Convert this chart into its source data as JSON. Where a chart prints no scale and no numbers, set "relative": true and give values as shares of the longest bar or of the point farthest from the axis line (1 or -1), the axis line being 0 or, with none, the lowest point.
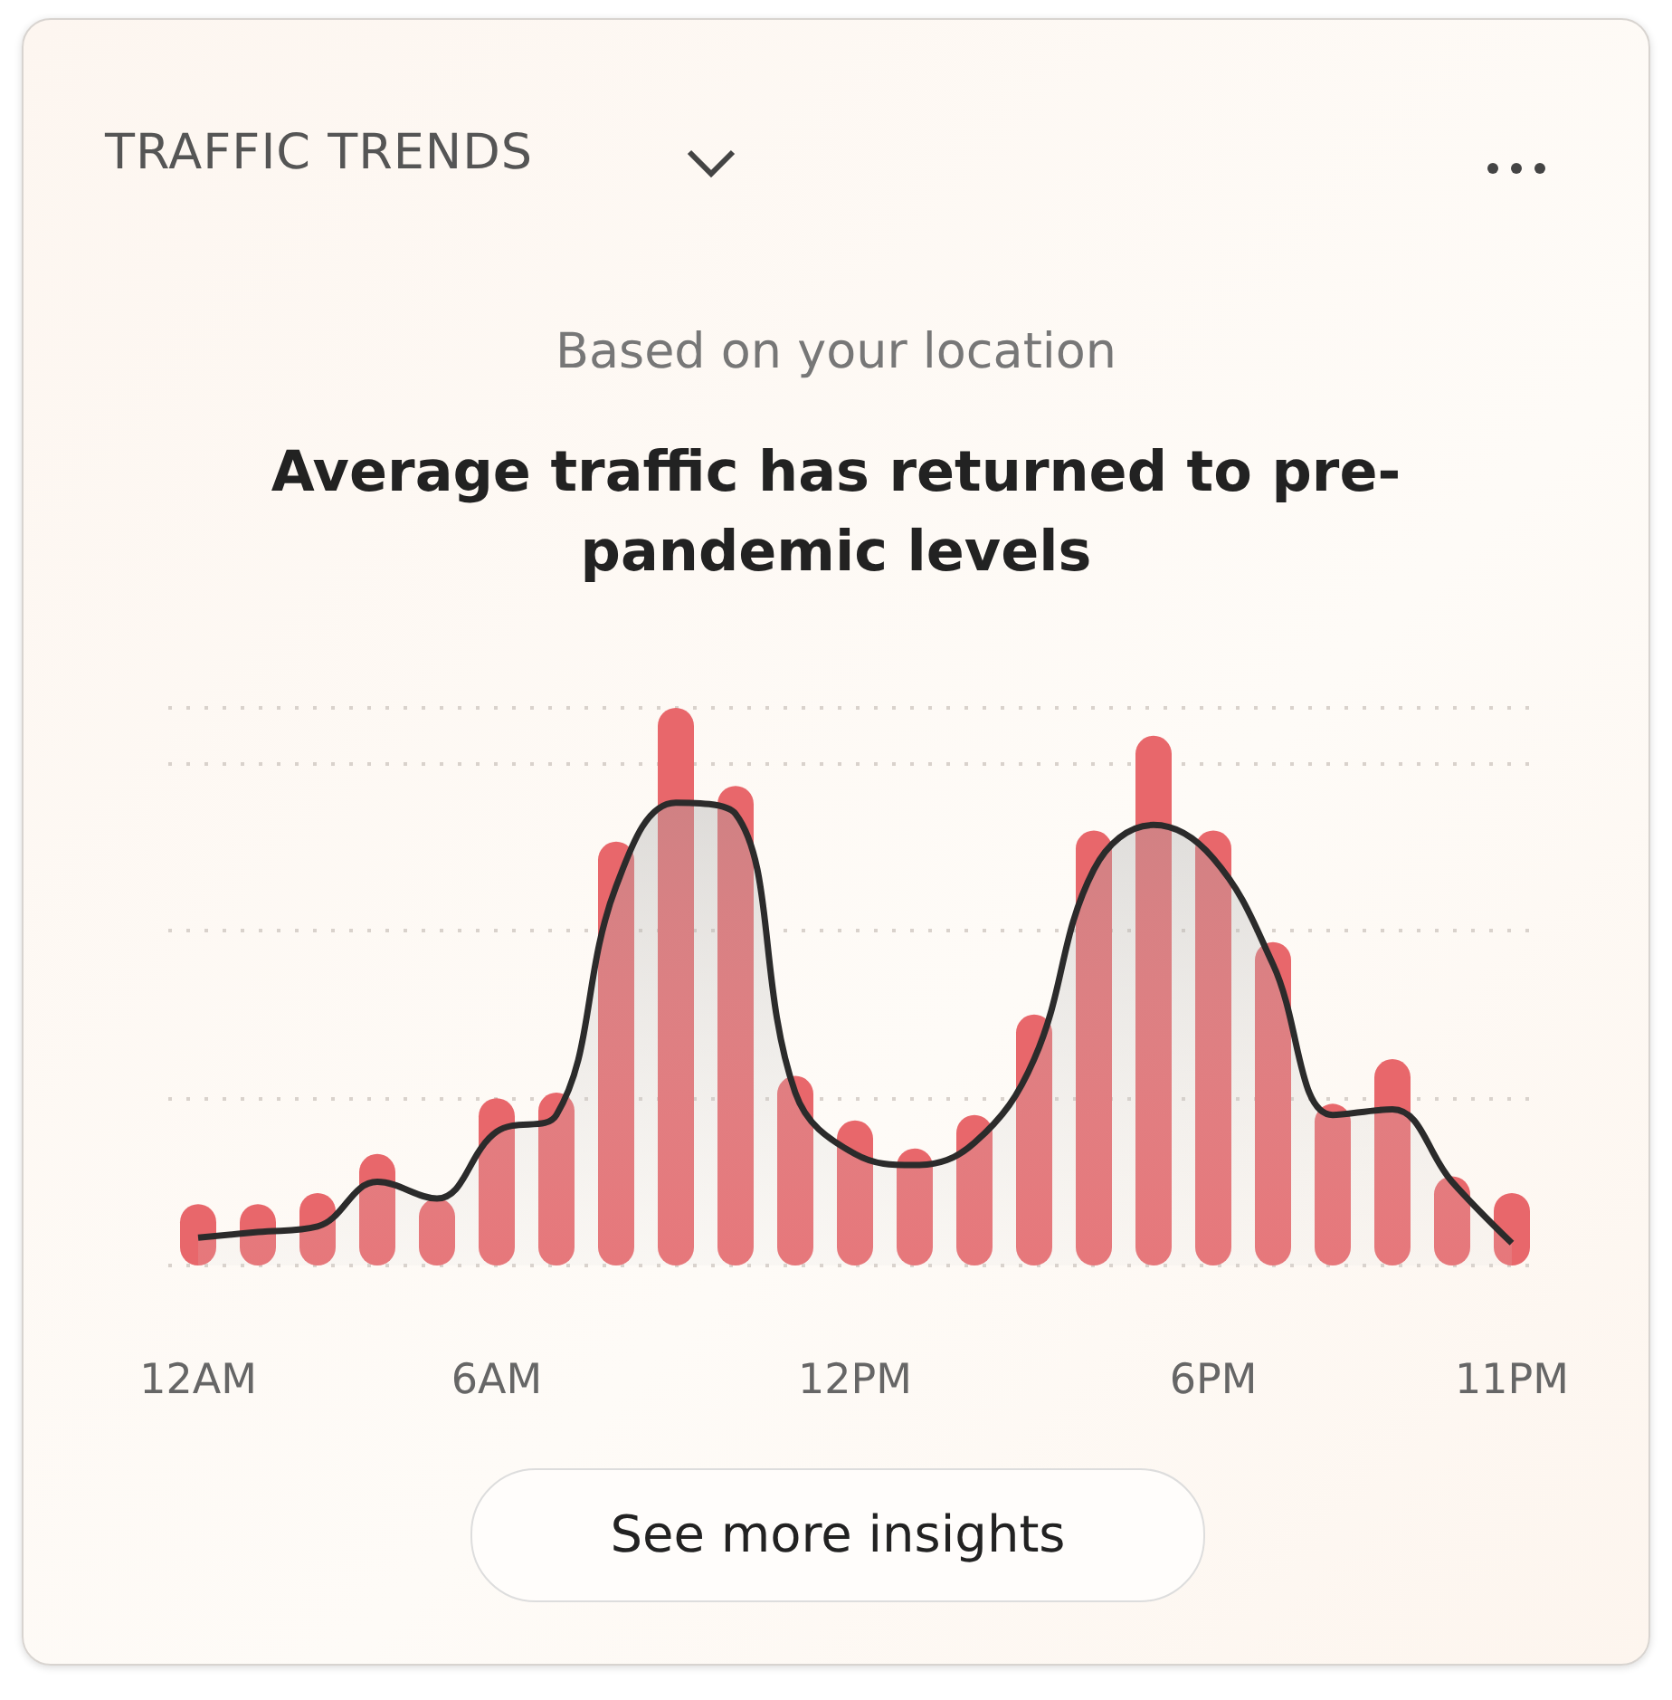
{
  "chart_data": {
    "type": "bar",
    "title": "TRAFFIC TRENDS",
    "subtitle": "Based on your location",
    "annotations": [
      "Average traffic has returned to pre-pandemic levels",
      "See more insights"
    ],
    "categories": [
      "12AM",
      null,
      null,
      null,
      null,
      "6AM",
      null,
      null,
      null,
      null,
      null,
      "12PM",
      null,
      null,
      null,
      null,
      null,
      "6PM",
      null,
      null,
      null,
      null,
      "11PM"
    ],
    "relative": true,
    "grid": "y",
    "series": [
      {
        "color": "#e8676b",
        "values": [
          0.11,
          0.11,
          0.13,
          0.2,
          0.12,
          0.3,
          0.31,
          0.76,
          1,
          0.86,
          0.34,
          0.26,
          0.21,
          0.27,
          0.45,
          0.78,
          0.95,
          0.78,
          0.58,
          0.29,
          0.37,
          0.16,
          0.13
        ]
      },
      {
        "type": "area",
        "color": "#2b2b2b",
        "values": [
          0.05,
          0.06,
          0.07,
          0.15,
          0.12,
          0.24,
          0.27,
          0.68,
          0.83,
          0.81,
          0.31,
          0.2,
          0.18,
          0.22,
          0.37,
          0.71,
          0.79,
          0.73,
          0.54,
          0.27,
          0.28,
          0.15,
          0.04
        ]
      }
    ]
  }
}
